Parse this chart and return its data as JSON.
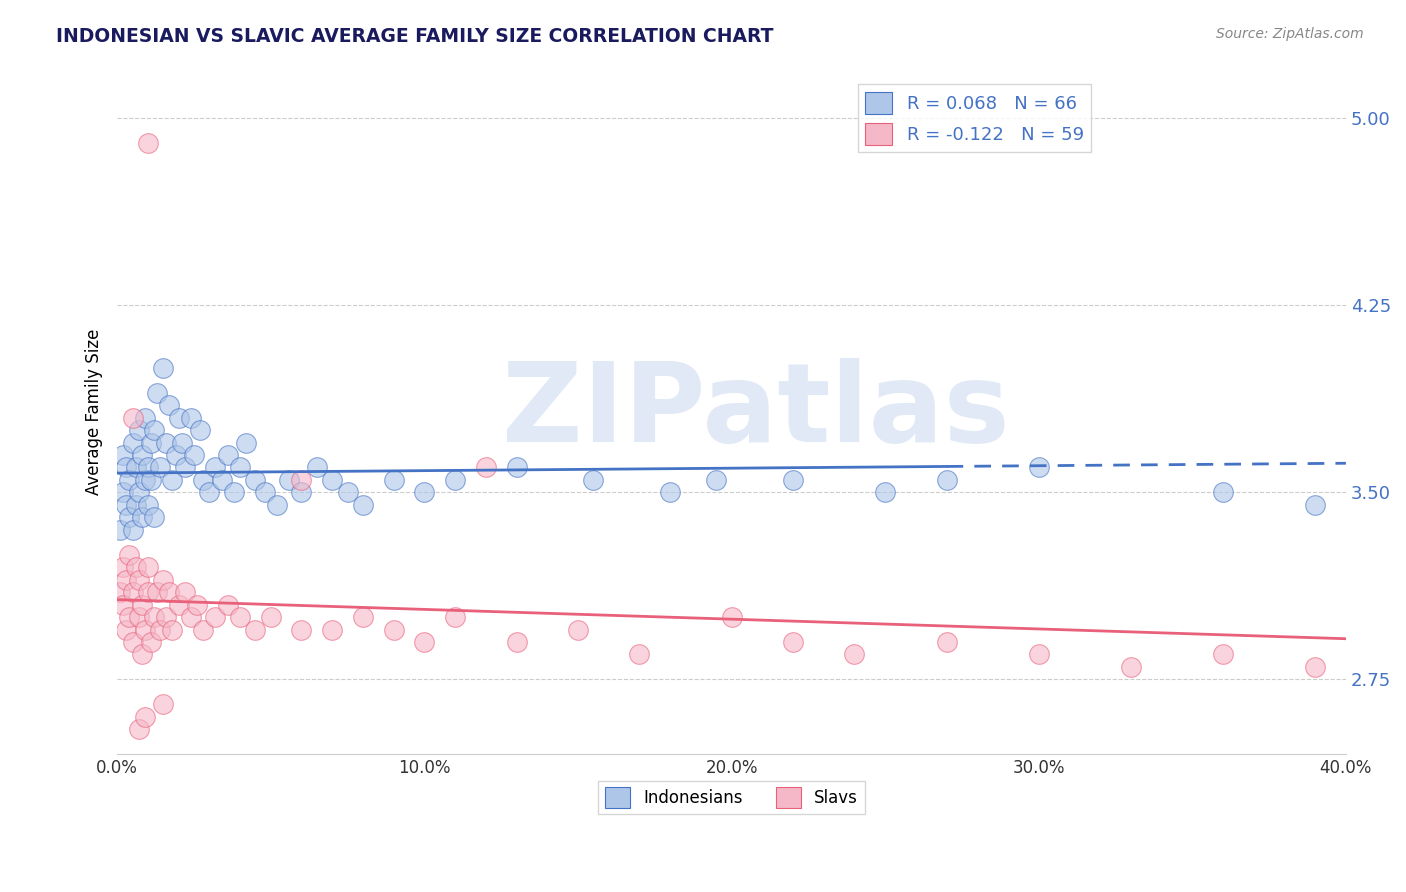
{
  "title": "INDONESIAN VS SLAVIC AVERAGE FAMILY SIZE CORRELATION CHART",
  "source": "Source: ZipAtlas.com",
  "ylabel": "Average Family Size",
  "xlim": [
    0.0,
    0.4
  ],
  "ylim": [
    2.45,
    5.2
  ],
  "yticks": [
    2.75,
    3.5,
    4.25,
    5.0
  ],
  "xticks": [
    0.0,
    0.1,
    0.2,
    0.3,
    0.4
  ],
  "xtick_labels": [
    "0.0%",
    "10.0%",
    "20.0%",
    "30.0%",
    "40.0%"
  ],
  "r_indonesian": 0.068,
  "n_indonesian": 66,
  "r_slavic": -0.122,
  "n_slavic": 59,
  "color_indonesian": "#aec6e8",
  "color_slavic": "#f5b8c8",
  "line_color_indonesian": "#4472c4",
  "line_color_slavic": "#e8607a",
  "legend_label_indonesian": "Indonesians",
  "legend_label_slavic": "Slavs",
  "watermark": "ZIPatlas",
  "indonesian_x": [
    0.001,
    0.002,
    0.002,
    0.003,
    0.003,
    0.004,
    0.004,
    0.005,
    0.005,
    0.006,
    0.006,
    0.007,
    0.007,
    0.008,
    0.008,
    0.009,
    0.009,
    0.01,
    0.01,
    0.011,
    0.011,
    0.012,
    0.012,
    0.013,
    0.014,
    0.015,
    0.016,
    0.017,
    0.018,
    0.019,
    0.02,
    0.021,
    0.022,
    0.024,
    0.025,
    0.027,
    0.028,
    0.03,
    0.032,
    0.034,
    0.036,
    0.038,
    0.04,
    0.042,
    0.045,
    0.048,
    0.052,
    0.056,
    0.06,
    0.065,
    0.07,
    0.075,
    0.08,
    0.09,
    0.1,
    0.11,
    0.13,
    0.155,
    0.18,
    0.195,
    0.22,
    0.25,
    0.27,
    0.3,
    0.36,
    0.39
  ],
  "indonesian_y": [
    3.35,
    3.5,
    3.65,
    3.45,
    3.6,
    3.55,
    3.4,
    3.7,
    3.35,
    3.45,
    3.6,
    3.75,
    3.5,
    3.4,
    3.65,
    3.55,
    3.8,
    3.45,
    3.6,
    3.7,
    3.55,
    3.4,
    3.75,
    3.9,
    3.6,
    4.0,
    3.7,
    3.85,
    3.55,
    3.65,
    3.8,
    3.7,
    3.6,
    3.8,
    3.65,
    3.75,
    3.55,
    3.5,
    3.6,
    3.55,
    3.65,
    3.5,
    3.6,
    3.7,
    3.55,
    3.5,
    3.45,
    3.55,
    3.5,
    3.6,
    3.55,
    3.5,
    3.45,
    3.55,
    3.5,
    3.55,
    3.6,
    3.55,
    3.5,
    3.55,
    3.55,
    3.5,
    3.55,
    3.6,
    3.5,
    3.45
  ],
  "slavic_x": [
    0.001,
    0.002,
    0.002,
    0.003,
    0.003,
    0.004,
    0.004,
    0.005,
    0.005,
    0.006,
    0.007,
    0.007,
    0.008,
    0.008,
    0.009,
    0.01,
    0.01,
    0.011,
    0.012,
    0.013,
    0.014,
    0.015,
    0.016,
    0.017,
    0.018,
    0.02,
    0.022,
    0.024,
    0.026,
    0.028,
    0.032,
    0.036,
    0.04,
    0.045,
    0.05,
    0.06,
    0.07,
    0.08,
    0.09,
    0.1,
    0.11,
    0.13,
    0.15,
    0.17,
    0.2,
    0.22,
    0.24,
    0.27,
    0.3,
    0.33,
    0.36,
    0.39,
    0.01,
    0.06,
    0.12,
    0.005,
    0.007,
    0.009,
    0.015
  ],
  "slavic_y": [
    3.1,
    3.2,
    3.05,
    3.15,
    2.95,
    3.25,
    3.0,
    3.1,
    2.9,
    3.2,
    3.0,
    3.15,
    2.85,
    3.05,
    2.95,
    3.1,
    3.2,
    2.9,
    3.0,
    3.1,
    2.95,
    3.15,
    3.0,
    3.1,
    2.95,
    3.05,
    3.1,
    3.0,
    3.05,
    2.95,
    3.0,
    3.05,
    3.0,
    2.95,
    3.0,
    2.95,
    2.95,
    3.0,
    2.95,
    2.9,
    3.0,
    2.9,
    2.95,
    2.85,
    3.0,
    2.9,
    2.85,
    2.9,
    2.85,
    2.8,
    2.85,
    2.8,
    4.9,
    3.55,
    3.6,
    3.8,
    2.55,
    2.6,
    2.65
  ]
}
